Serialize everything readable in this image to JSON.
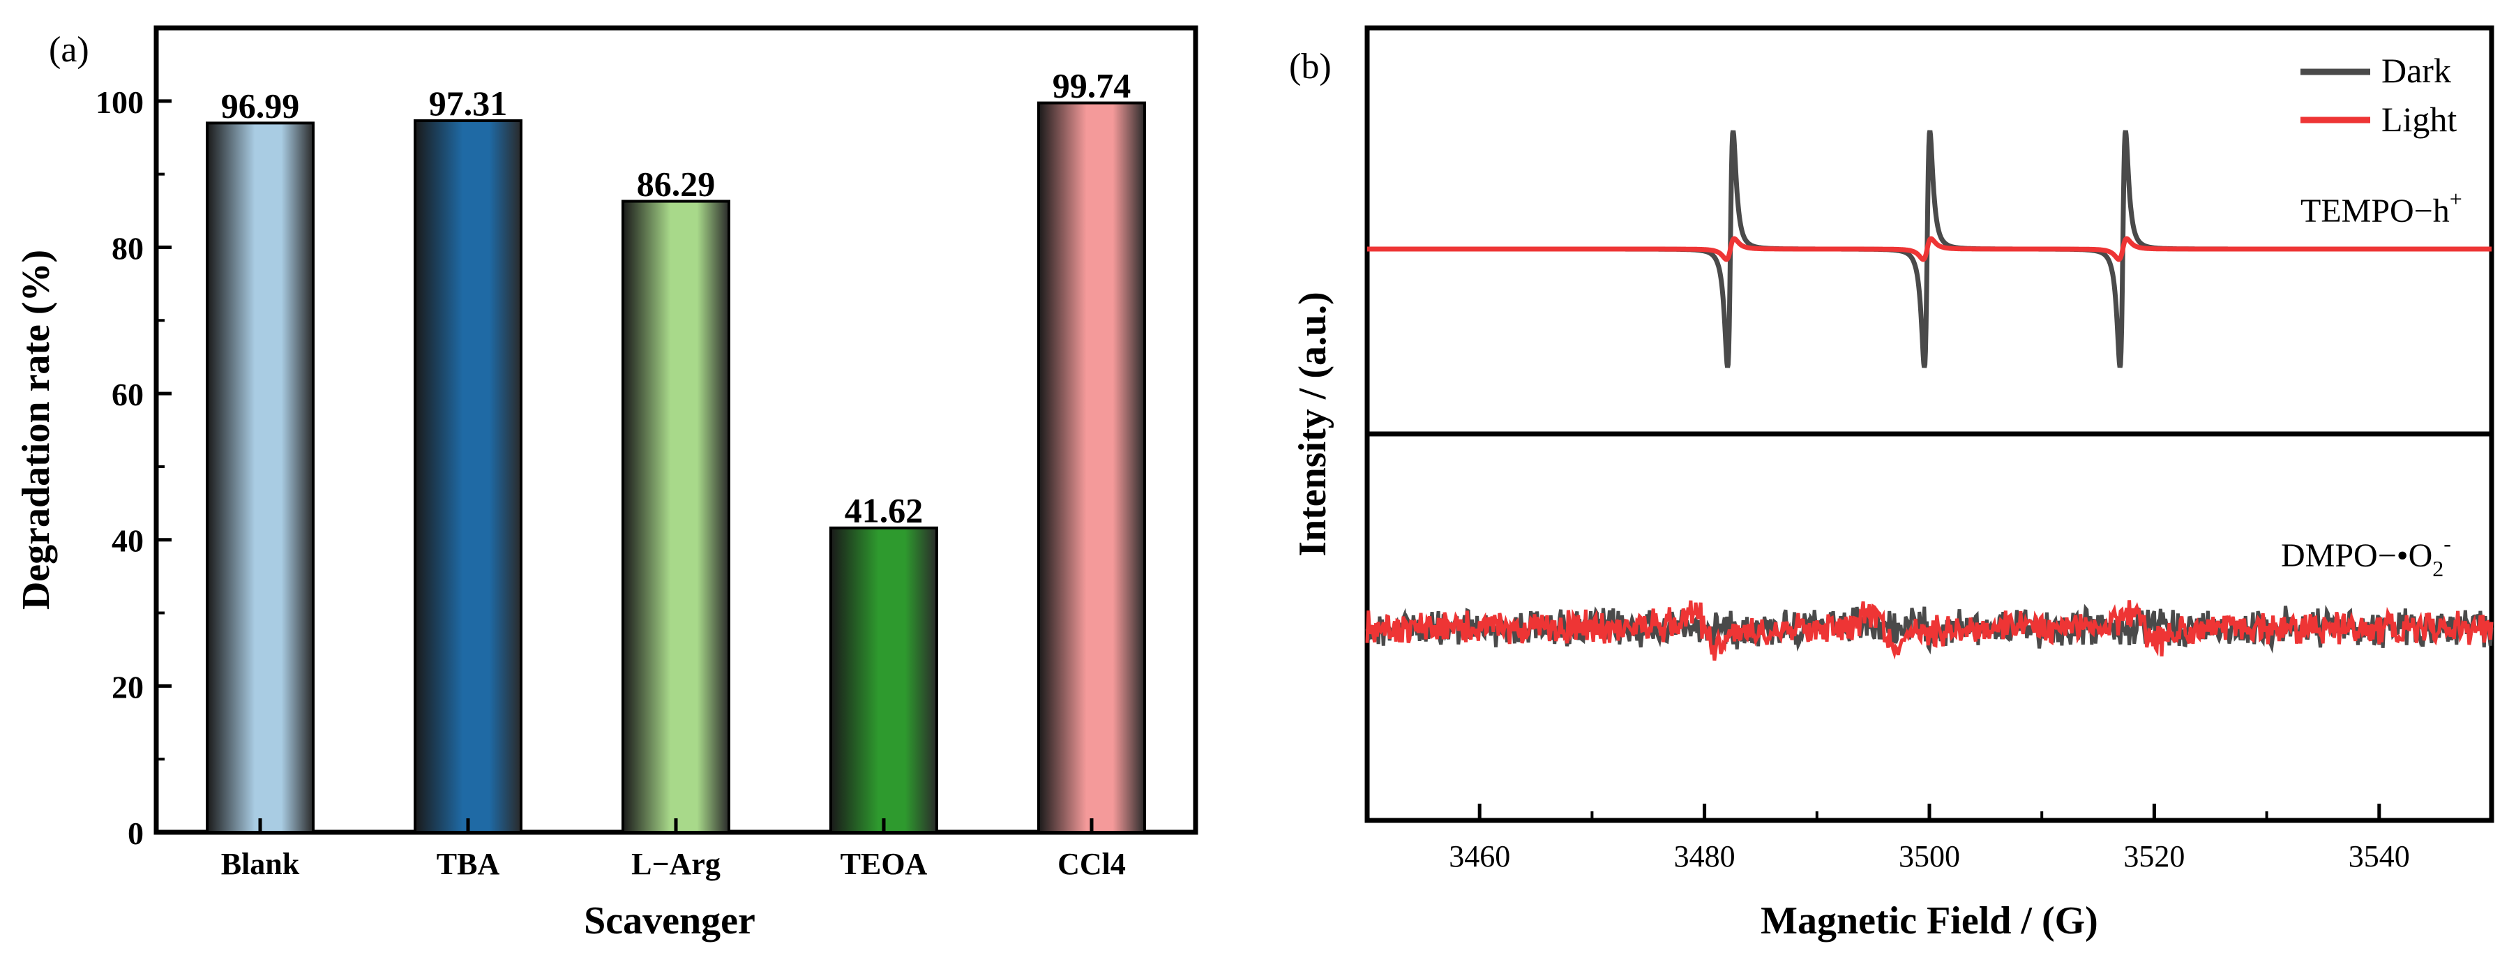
{
  "chart_data": [
    {
      "panel_label": "(a)",
      "type": "bar",
      "xlabel": "Scavenger",
      "ylabel": "Degradation rate (%)",
      "ylim": [
        0,
        110
      ],
      "yticks": [
        0,
        20,
        40,
        60,
        80,
        100
      ],
      "categories": [
        "Blank",
        "TBA",
        "L−Arg",
        "TEOA",
        "CCl4"
      ],
      "values": [
        96.99,
        97.31,
        86.29,
        41.62,
        99.74
      ],
      "value_labels": [
        "96.99",
        "97.31",
        "86.29",
        "41.62",
        "99.74"
      ],
      "bar_colors": [
        "#a9cce3",
        "#1f6aa5",
        "#a8d98a",
        "#2e9a2e",
        "#f49a9a"
      ]
    },
    {
      "panel_label": "(b)",
      "type": "line",
      "xlabel": "Magnetic Field / (G)",
      "ylabel": "Intensity / (a.u.)",
      "xlim": [
        3450,
        3550
      ],
      "xticks": [
        3460,
        3480,
        3500,
        3520,
        3540
      ],
      "legend": [
        {
          "name": "Dark",
          "color": "#4a4a4a"
        },
        {
          "name": "Light",
          "color": "#ee3535"
        }
      ],
      "subpanels": [
        {
          "label": "TEMPO−h",
          "label_sup": "+",
          "series": [
            {
              "name": "Dark",
              "peak_centers": [
                3482.3,
                3499.8,
                3517.2
              ],
              "relative_amplitude": 1.0
            },
            {
              "name": "Light",
              "peak_centers": [
                3482.3,
                3499.8,
                3517.2
              ],
              "relative_amplitude": 0.08
            }
          ]
        },
        {
          "label": "DMPO−•O",
          "label_sub": "2",
          "label_sup": "-",
          "series": [
            {
              "name": "Dark",
              "description_level": "noise"
            },
            {
              "name": "Light",
              "features_at": [
                3480,
                3496,
                3519
              ]
            }
          ]
        }
      ]
    }
  ]
}
